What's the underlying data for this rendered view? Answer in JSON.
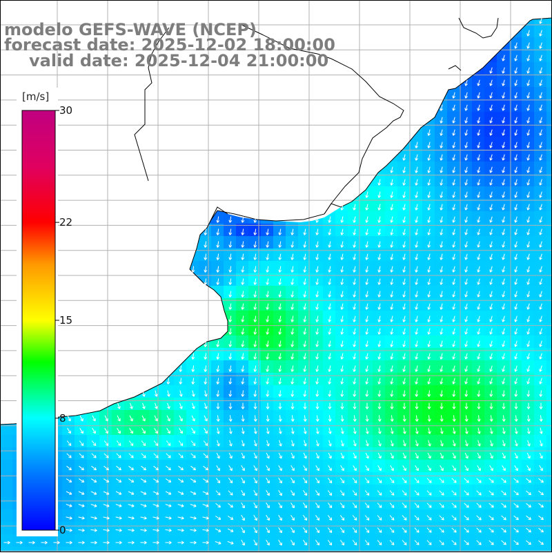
{
  "title": {
    "model": "modelo GEFS-WAVE (NCEP)",
    "forecast": "forecast date: 2025-12-02 18:00:00",
    "valid": "valid date: 2025-12-04 21:00:00"
  },
  "colorbar": {
    "units": "[m/s]",
    "ticks": [
      "0",
      "8",
      "15",
      "22",
      "30"
    ],
    "tick_values": [
      0,
      8,
      15,
      22,
      30
    ],
    "min": 0,
    "max": 30,
    "stops": [
      {
        "v": 0,
        "c": "#0000ff"
      },
      {
        "v": 4,
        "c": "#0078ff"
      },
      {
        "v": 8,
        "c": "#00ffff"
      },
      {
        "v": 12,
        "c": "#00ff00"
      },
      {
        "v": 15,
        "c": "#ffff00"
      },
      {
        "v": 19,
        "c": "#ff9900"
      },
      {
        "v": 22,
        "c": "#ff0000"
      },
      {
        "v": 26,
        "c": "#e00060"
      },
      {
        "v": 30,
        "c": "#c00080"
      }
    ]
  },
  "map": {
    "variable": "wind speed and direction",
    "land_color": "#ffffff",
    "coastline_color": "#000000",
    "grid_color": "#b0b0b0",
    "arrow_color": "#ffffff"
  }
}
